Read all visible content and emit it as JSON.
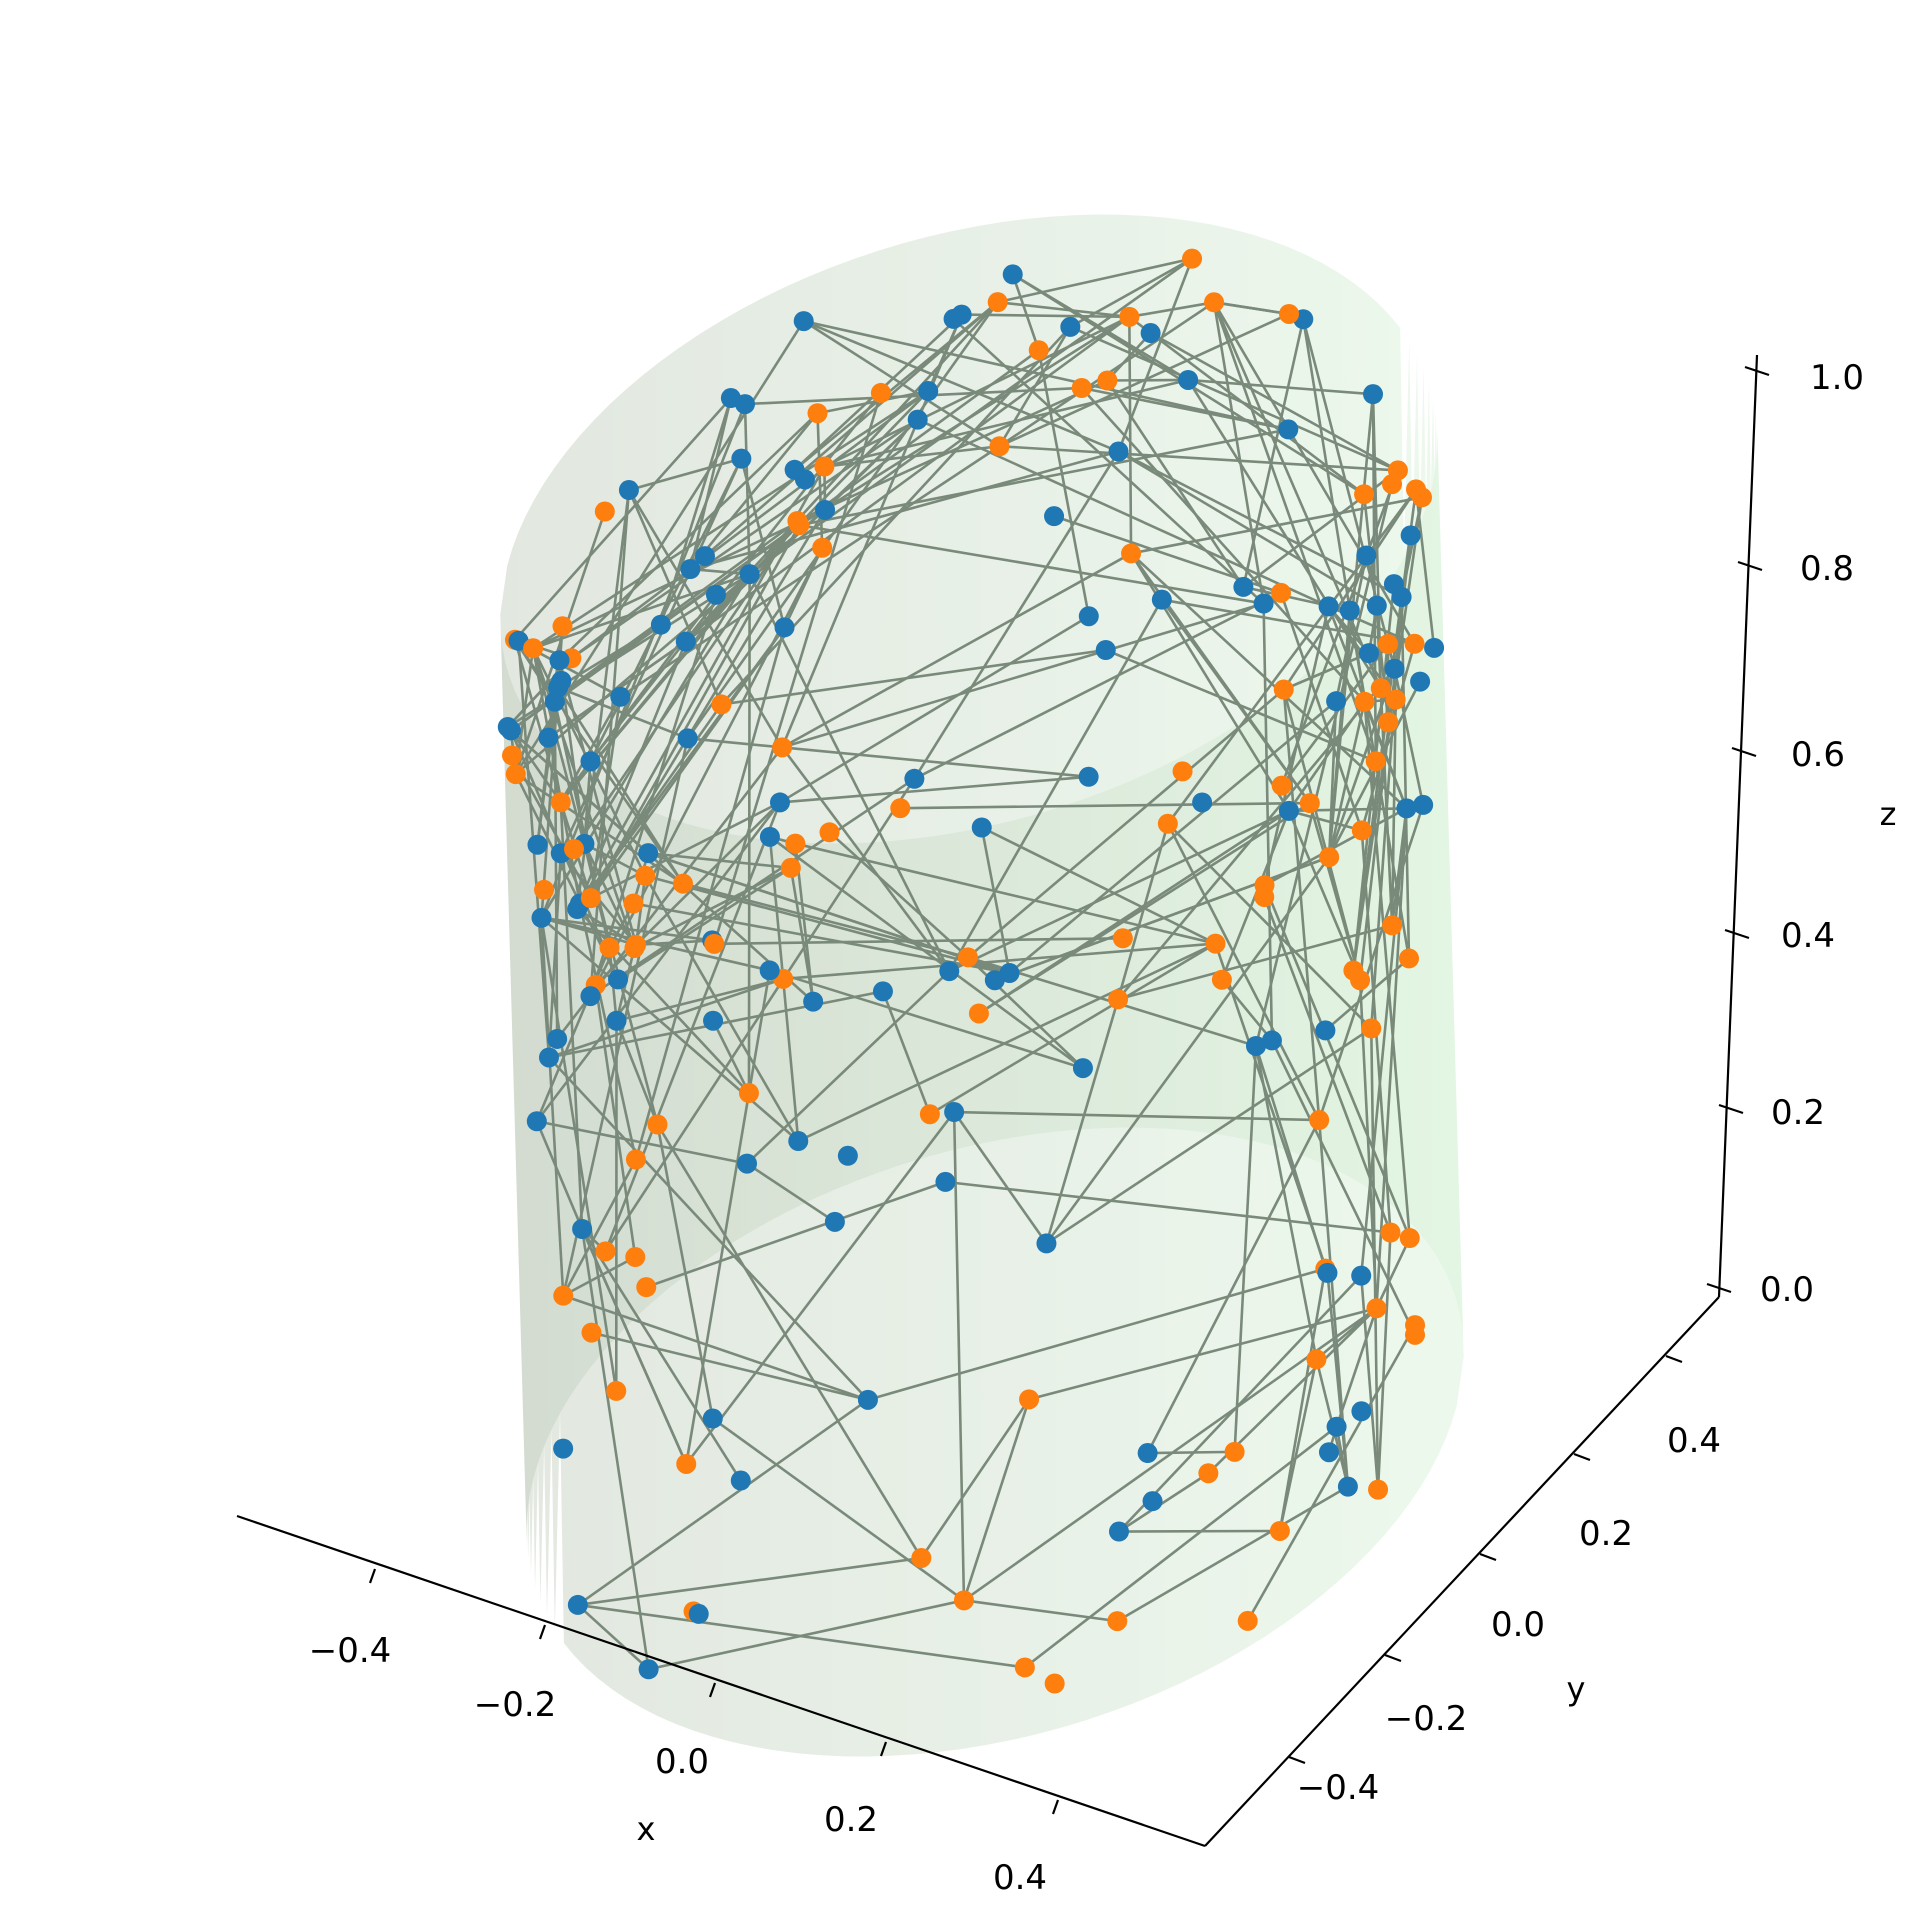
{
  "chart_data": {
    "type": "scatter",
    "projection": "3d",
    "title": "",
    "colors": {
      "cylinder_left": "#a8b8a2",
      "cylinder_right": "#c8ecc8",
      "edge": "#7a8a7a",
      "axis": "#000000",
      "series_blue": "#1f77b4",
      "series_orange": "#ff7f0e"
    },
    "axes": {
      "x": {
        "label": "x",
        "ticks": [
          -0.4,
          -0.2,
          0.0,
          0.2,
          0.4
        ],
        "tick_labels": [
          "−0.4",
          "−0.2",
          "0.0",
          "0.2",
          "0.4"
        ],
        "lim": [
          -0.5,
          0.5
        ]
      },
      "y": {
        "label": "y",
        "ticks": [
          -0.4,
          -0.2,
          0.0,
          0.2,
          0.4
        ],
        "tick_labels": [
          "−0.4",
          "−0.2",
          "0.0",
          "0.2",
          "0.4"
        ],
        "lim": [
          -0.5,
          0.5
        ]
      },
      "z": {
        "label": "z",
        "ticks": [
          0.0,
          0.2,
          0.4,
          0.6,
          0.8,
          1.0
        ],
        "tick_labels": [
          "0.0",
          "0.2",
          "0.4",
          "0.6",
          "0.8",
          "1.0"
        ],
        "lim": [
          0,
          1
        ]
      }
    },
    "surface": {
      "shape": "cylinder",
      "radius": 0.5,
      "z_range": [
        0,
        1
      ]
    },
    "grid": false,
    "legend": "none",
    "node_count": 220,
    "edge_count": 380,
    "series": [
      {
        "color": "#1f77b4"
      },
      {
        "color": "#ff7f0e"
      }
    ]
  }
}
